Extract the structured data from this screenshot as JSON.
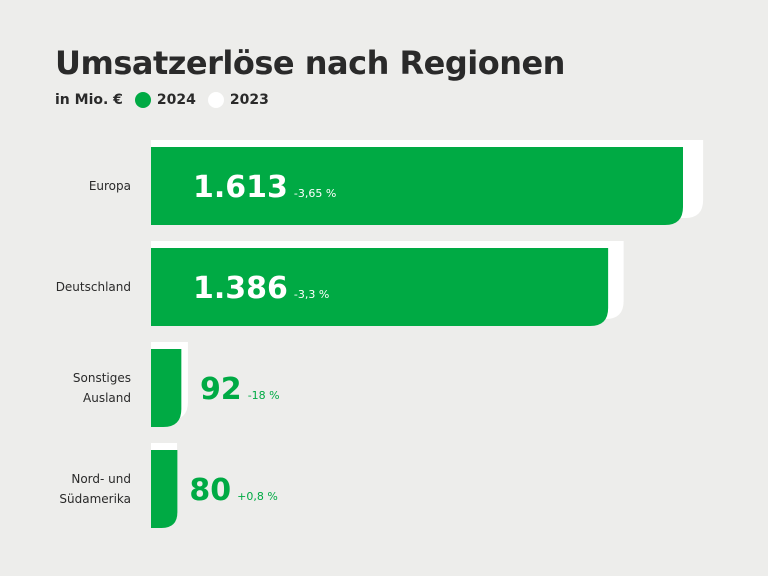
{
  "chart_data": {
    "type": "bar",
    "orientation": "horizontal",
    "title": "Umsatzerlöse nach Regionen",
    "unit": "in Mio. €",
    "categories": [
      [
        "Europa"
      ],
      [
        "Deutschland"
      ],
      [
        "Sonstiges",
        "Ausland"
      ],
      [
        "Nord- und",
        "Südamerika"
      ]
    ],
    "series": [
      {
        "name": "2024",
        "color": "#00aa44",
        "values": [
          1613,
          1386,
          92,
          80
        ],
        "value_labels": [
          "1.613",
          "1.386",
          "92",
          "80"
        ],
        "changes": [
          "-3,65 %",
          "-3,3 %",
          "-18 %",
          "+0,8 %"
        ]
      },
      {
        "name": "2023",
        "color": "#ffffff",
        "values": [
          1674,
          1433,
          112,
          79
        ]
      }
    ],
    "legend_position": "top-left",
    "grid": false
  }
}
